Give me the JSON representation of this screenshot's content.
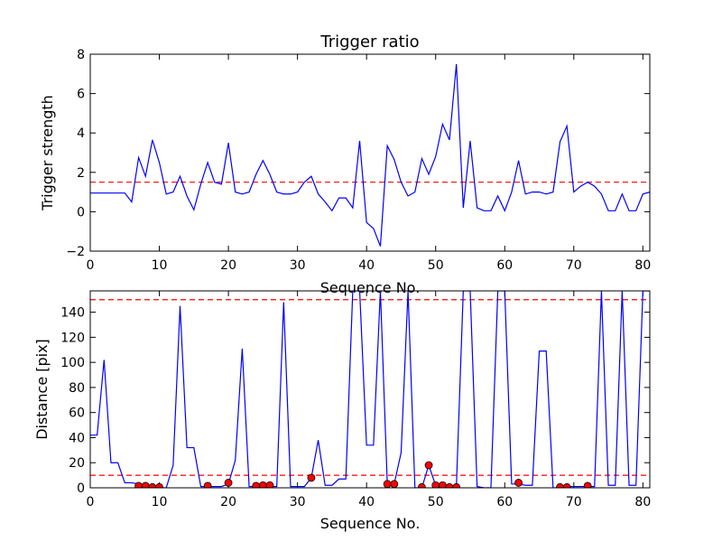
{
  "chart_data": [
    {
      "type": "line",
      "title": "Trigger ratio",
      "xlabel": "Sequence No.",
      "ylabel": "Trigger strength",
      "xlim": [
        0,
        81
      ],
      "ylim": [
        -2,
        8
      ],
      "xticks": [
        0,
        10,
        20,
        30,
        40,
        50,
        60,
        70,
        80
      ],
      "yticks": [
        -2,
        0,
        2,
        4,
        6,
        8
      ],
      "grid": false,
      "series": [
        {
          "color": "#0000ff",
          "x": [
            0,
            1,
            2,
            3,
            4,
            5,
            6,
            7,
            8,
            9,
            10,
            11,
            12,
            13,
            14,
            15,
            16,
            17,
            18,
            19,
            20,
            21,
            22,
            23,
            24,
            25,
            26,
            27,
            28,
            29,
            30,
            31,
            32,
            33,
            34,
            35,
            36,
            37,
            38,
            39,
            40,
            41,
            42,
            43,
            44,
            45,
            46,
            47,
            48,
            49,
            50,
            51,
            52,
            53,
            54,
            55,
            56,
            57,
            58,
            59,
            60,
            61,
            62,
            63,
            64,
            65,
            66,
            67,
            68,
            69,
            70,
            71,
            72,
            73,
            74,
            75,
            76,
            77,
            78,
            79,
            80,
            81
          ],
          "values": [
            0.95,
            0.95,
            0.95,
            0.95,
            0.95,
            0.95,
            0.5,
            2.75,
            1.8,
            3.65,
            2.5,
            0.9,
            1.0,
            1.8,
            0.8,
            0.1,
            1.4,
            2.5,
            1.5,
            1.4,
            3.5,
            1.0,
            0.9,
            1.0,
            1.9,
            2.6,
            1.9,
            1.0,
            0.9,
            0.9,
            1.0,
            1.5,
            1.8,
            0.9,
            0.5,
            0.05,
            0.7,
            0.7,
            0.2,
            3.6,
            -0.55,
            -0.85,
            -1.75,
            3.35,
            2.65,
            1.5,
            0.8,
            1.0,
            2.7,
            1.9,
            2.8,
            4.45,
            3.65,
            7.5,
            0.2,
            3.6,
            0.2,
            0.05,
            0.05,
            0.8,
            0.05,
            1.0,
            2.6,
            0.9,
            1.0,
            1.0,
            0.9,
            1.0,
            3.55,
            4.35,
            1.0,
            1.3,
            1.5,
            1.3,
            0.9,
            0.05,
            0.05,
            0.9,
            0.05,
            0.05,
            0.9,
            1.0
          ]
        }
      ],
      "threshold": 1.5,
      "threshold_color": "#ff0000"
    },
    {
      "type": "line",
      "title": "",
      "xlabel": "Sequence No.",
      "ylabel": "Distance [pix]",
      "xlim": [
        0,
        81
      ],
      "ylim": [
        0,
        157
      ],
      "xticks": [
        0,
        10,
        20,
        30,
        40,
        50,
        60,
        70,
        80
      ],
      "yticks": [
        0,
        20,
        40,
        60,
        80,
        100,
        120,
        140
      ],
      "grid": false,
      "series": [
        {
          "color": "#0000ff",
          "x": [
            0,
            1,
            2,
            3,
            4,
            5,
            6,
            7,
            8,
            9,
            10,
            11,
            12,
            13,
            14,
            15,
            16,
            17,
            18,
            19,
            20,
            21,
            22,
            23,
            24,
            25,
            26,
            27,
            28,
            29,
            30,
            31,
            32,
            33,
            34,
            35,
            36,
            37,
            38,
            39,
            40,
            41,
            42,
            43,
            44,
            45,
            46,
            47,
            48,
            49,
            50,
            51,
            52,
            53,
            54,
            55,
            56,
            57,
            58,
            59,
            60,
            61,
            62,
            63,
            64,
            65,
            66,
            67,
            68,
            69,
            70,
            71,
            72,
            73,
            74,
            75,
            76,
            77,
            78,
            79,
            80,
            81
          ],
          "values": [
            42,
            42,
            102,
            20,
            20,
            4,
            4,
            3,
            1,
            1,
            0,
            0,
            18,
            145,
            32,
            32,
            1,
            1,
            1,
            1,
            3,
            22,
            111,
            1,
            1,
            1,
            1,
            1,
            148,
            1,
            1,
            1,
            8,
            38,
            2,
            2,
            7,
            7,
            157,
            157,
            34,
            34,
            157,
            3,
            3,
            28,
            157,
            0,
            0,
            18,
            2,
            2,
            2,
            1,
            157,
            157,
            1,
            0,
            0,
            157,
            157,
            3,
            3,
            2,
            2,
            109,
            109,
            0,
            0,
            1,
            1,
            1,
            1,
            1,
            157,
            2,
            2,
            157,
            2,
            2,
            157,
            157
          ]
        },
        {
          "name": "",
          "kind": "markers",
          "color": "#ff0000",
          "x": [
            7,
            8,
            9,
            10,
            17,
            20,
            24,
            25,
            26,
            32,
            43,
            44,
            48,
            49,
            50,
            51,
            52,
            53,
            62,
            68,
            69,
            72
          ],
          "values": [
            1.5,
            1.5,
            0.5,
            0.5,
            1.5,
            4,
            1.5,
            2,
            2,
            8,
            3,
            3,
            0.5,
            18,
            2,
            2,
            0.5,
            0.5,
            4,
            0.5,
            0.5,
            1.5
          ]
        }
      ],
      "thresholds": [
        10,
        150
      ],
      "threshold_color": "#ff0000"
    }
  ]
}
